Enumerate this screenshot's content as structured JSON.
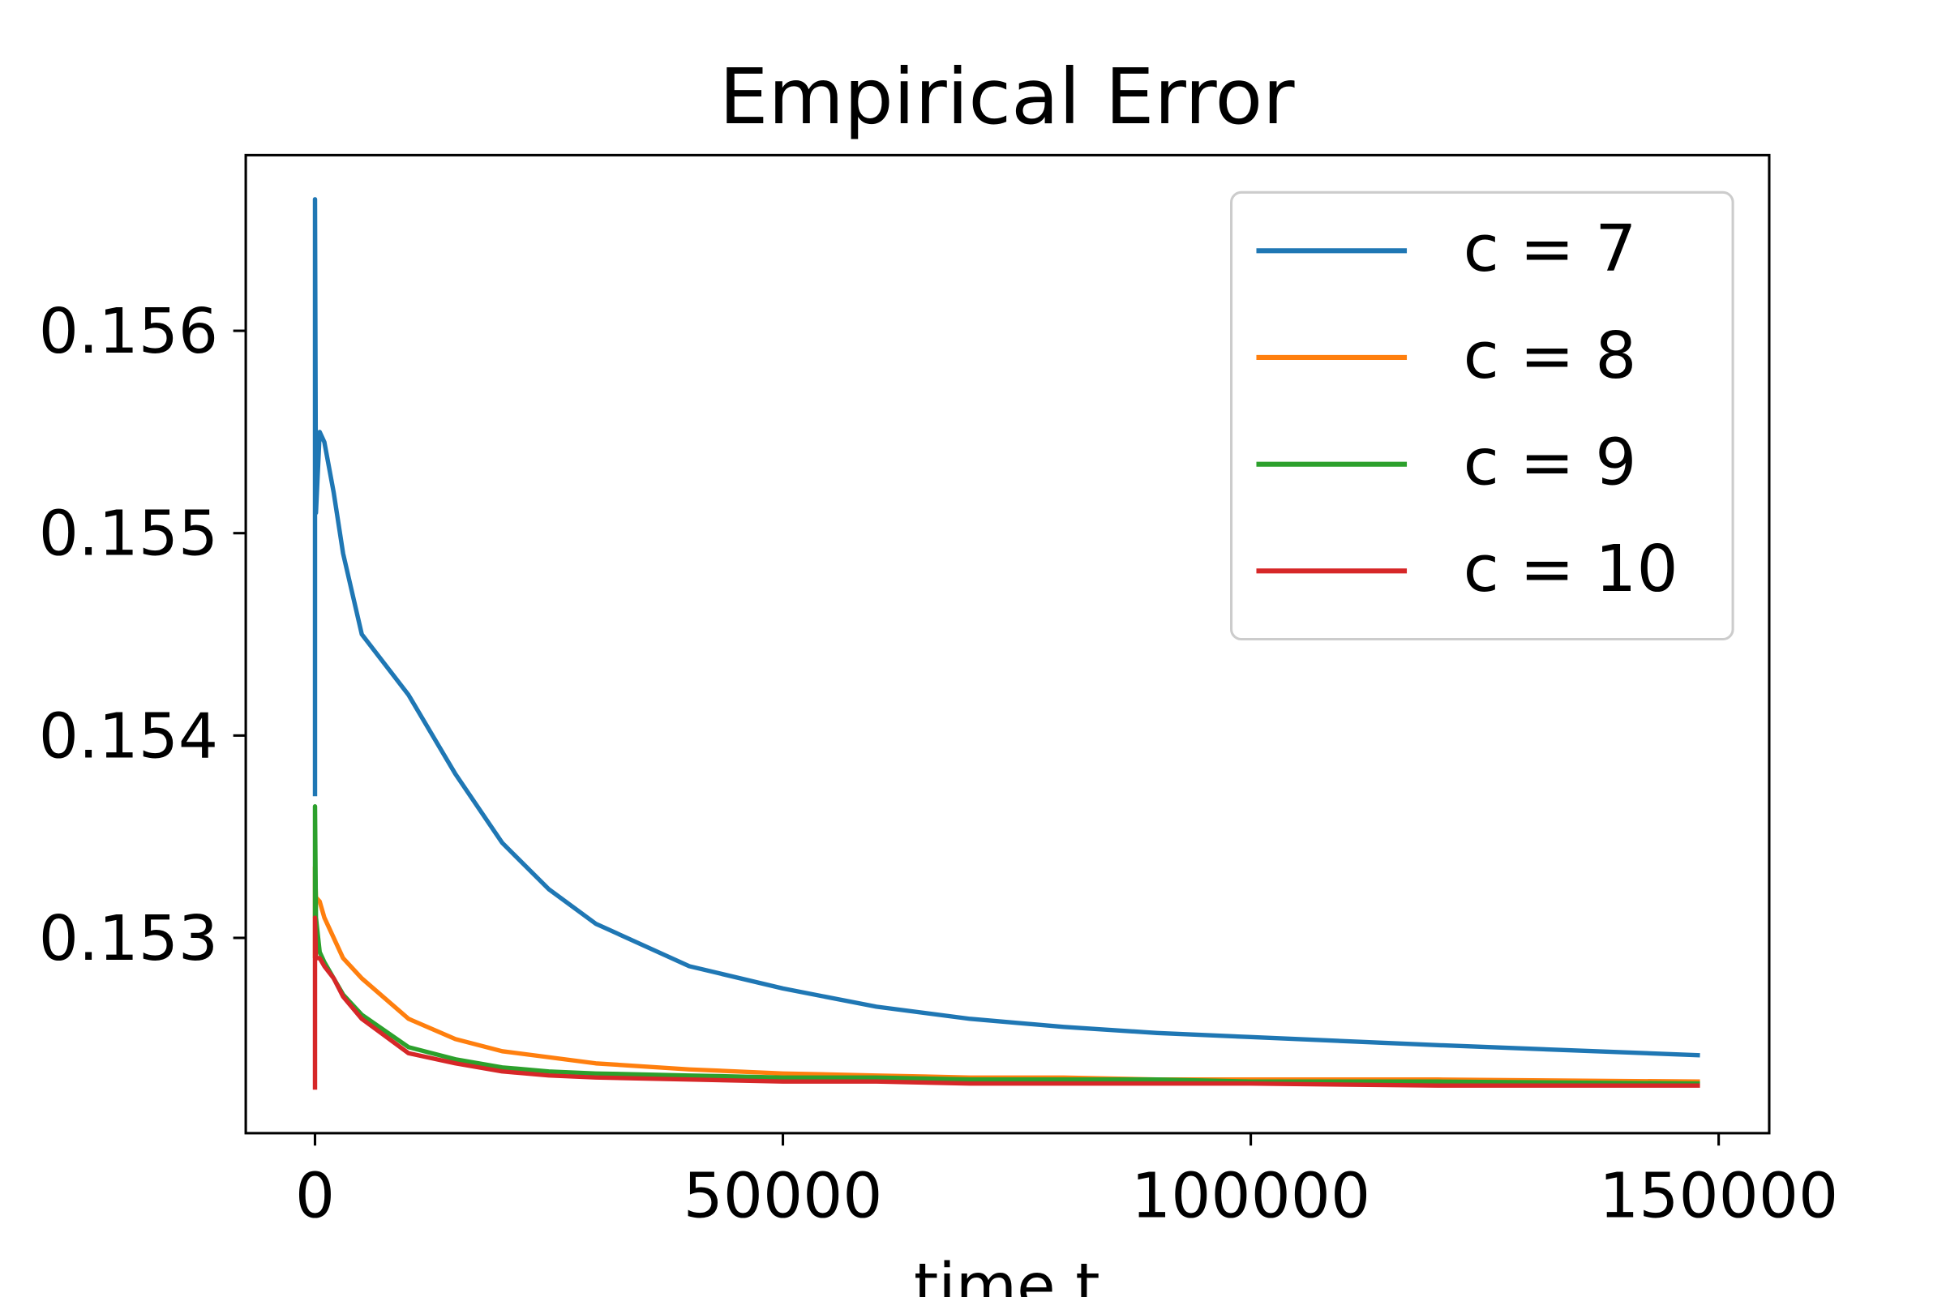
{
  "chart_data": {
    "type": "line",
    "title": "Empirical Error",
    "xlabel": "time t",
    "x": [
      0,
      0,
      100,
      500,
      1000,
      2000,
      3000,
      5000,
      10000,
      15000,
      20000,
      25000,
      30000,
      40000,
      50000,
      60000,
      70000,
      80000,
      90000,
      100000,
      120000,
      148000
    ],
    "series": [
      {
        "name": "c = 7",
        "color": "#1f77b4",
        "values": [
          0.1537,
          0.15665,
          0.1551,
          0.1555,
          0.15545,
          0.1552,
          0.1549,
          0.1545,
          0.1542,
          0.15381,
          0.15347,
          0.15324,
          0.15307,
          0.15286,
          0.15275,
          0.15266,
          0.1526,
          0.15256,
          0.15253,
          0.15251,
          0.15247,
          0.15242
        ]
      },
      {
        "name": "c = 8",
        "color": "#ff7f0e",
        "values": [
          0.1529,
          0.15335,
          0.1532,
          0.15318,
          0.1531,
          0.153,
          0.1529,
          0.1528,
          0.1526,
          0.1525,
          0.15244,
          0.15241,
          0.15238,
          0.15235,
          0.15233,
          0.15232,
          0.15231,
          0.15231,
          0.1523,
          0.1523,
          0.1523,
          0.15229
        ]
      },
      {
        "name": "c = 9",
        "color": "#2ca02c",
        "values": [
          0.1531,
          0.15365,
          0.1531,
          0.15293,
          0.15288,
          0.1528,
          0.15272,
          0.15262,
          0.15246,
          0.1524,
          0.15236,
          0.15234,
          0.15233,
          0.15232,
          0.15231,
          0.15231,
          0.1523,
          0.1523,
          0.1523,
          0.15229,
          0.15229,
          0.15228
        ]
      },
      {
        "name": "c = 10",
        "color": "#d62728",
        "values": [
          0.15225,
          0.1531,
          0.1529,
          0.1529,
          0.15286,
          0.1528,
          0.15271,
          0.1526,
          0.15243,
          0.15238,
          0.15234,
          0.15232,
          0.15231,
          0.1523,
          0.15229,
          0.15229,
          0.15228,
          0.15228,
          0.15228,
          0.15228,
          0.15227,
          0.15227
        ]
      }
    ],
    "xlim": [
      -7400,
      155400
    ],
    "ylim": [
      0.152035,
      0.156868
    ],
    "xticks": [
      0,
      50000,
      100000,
      150000
    ],
    "yticks": [
      0.153,
      0.154,
      0.155,
      0.156
    ],
    "legend": "upper right"
  }
}
